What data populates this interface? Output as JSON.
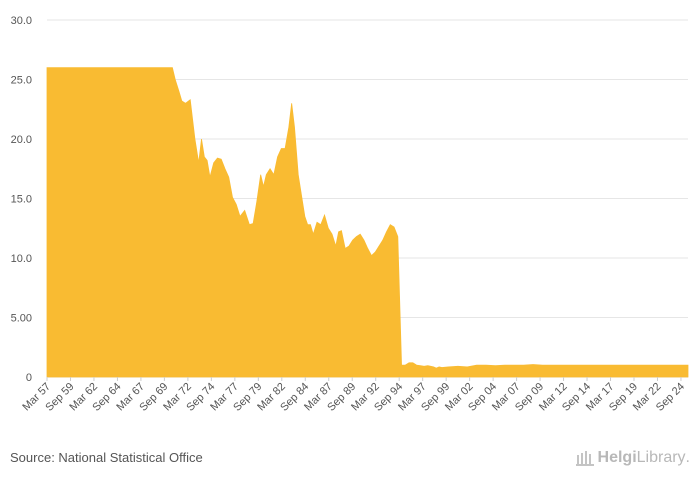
{
  "chart_data": {
    "type": "area",
    "title": "",
    "xlabel": "",
    "ylabel": "",
    "ylim": [
      0,
      30
    ],
    "y_ticks": [
      "0",
      "5.00",
      "10.0",
      "15.0",
      "20.0",
      "25.0",
      "30.0"
    ],
    "y_tick_values": [
      0,
      5,
      10,
      15,
      20,
      25,
      30
    ],
    "x_tick_labels": [
      "Mar 57",
      "Sep 59",
      "Mar 62",
      "Sep 64",
      "Mar 67",
      "Sep 69",
      "Mar 72",
      "Sep 74",
      "Mar 77",
      "Sep 79",
      "Mar 82",
      "Sep 84",
      "Mar 87",
      "Sep 89",
      "Mar 92",
      "Sep 94",
      "Mar 97",
      "Sep 99",
      "Mar 02",
      "Sep 04",
      "Mar 07",
      "Sep 09",
      "Mar 12",
      "Sep 14",
      "Mar 17",
      "Sep 19",
      "Mar 22",
      "Sep 24"
    ],
    "x_tick_values": [
      1957.25,
      1959.75,
      1962.25,
      1964.75,
      1967.25,
      1969.75,
      1972.25,
      1974.75,
      1977.25,
      1979.75,
      1982.25,
      1984.75,
      1987.25,
      1989.75,
      1992.25,
      1994.75,
      1997.25,
      1999.75,
      2002.25,
      2004.75,
      2007.25,
      2009.75,
      2012.25,
      2014.75,
      2017.25,
      2019.75,
      2022.25,
      2024.75
    ],
    "x_range": [
      1957.25,
      2025.5
    ],
    "grid": true,
    "fill_color": "#F9BB32",
    "series": [
      {
        "name": "value",
        "x": [
          1957.25,
          1970.6,
          1970.9,
          1971.3,
          1971.6,
          1972.0,
          1972.5,
          1973.0,
          1973.4,
          1973.7,
          1974.0,
          1974.3,
          1974.6,
          1975.0,
          1975.4,
          1975.8,
          1976.2,
          1976.6,
          1977.0,
          1977.4,
          1977.8,
          1978.3,
          1978.8,
          1979.2,
          1979.6,
          1980.0,
          1980.3,
          1980.6,
          1981.0,
          1981.4,
          1981.8,
          1982.2,
          1982.6,
          1983.0,
          1983.3,
          1983.6,
          1984.0,
          1984.4,
          1984.7,
          1985.0,
          1985.3,
          1985.6,
          1986.0,
          1986.4,
          1986.8,
          1987.2,
          1987.6,
          1988.0,
          1988.3,
          1988.6,
          1989.0,
          1989.4,
          1989.8,
          1990.2,
          1990.6,
          1991.0,
          1991.4,
          1991.8,
          1992.2,
          1992.6,
          1993.0,
          1993.4,
          1993.8,
          1994.2,
          1994.6,
          1995.0,
          1995.4,
          1995.8,
          1996.2,
          1996.6,
          1997.0,
          1997.4,
          1997.8,
          1998.1,
          1998.4,
          1998.7,
          1999.0,
          1999.3,
          2000.0,
          2001.0,
          2002.0,
          2003.0,
          2004.0,
          2005.0,
          2006.0,
          2007.0,
          2008.0,
          2009.0,
          2010.0,
          2011.0,
          2012.0,
          2013.0,
          2014.0,
          2015.0,
          2016.0,
          2017.0,
          2018.0,
          2019.0,
          2020.0,
          2021.0,
          2022.0,
          2023.0,
          2024.0,
          2025.5
        ],
        "y": [
          26.0,
          26.0,
          25.0,
          24.0,
          23.2,
          23.0,
          23.3,
          20.0,
          18.0,
          20.0,
          18.5,
          18.2,
          16.8,
          18.0,
          18.4,
          18.3,
          17.5,
          16.8,
          15.1,
          14.5,
          13.5,
          14.0,
          12.8,
          12.9,
          14.8,
          17.0,
          16.0,
          17.0,
          17.5,
          17.0,
          18.5,
          19.2,
          19.2,
          21.0,
          23.0,
          21.0,
          17.0,
          15.0,
          13.5,
          12.8,
          12.8,
          12.0,
          13.0,
          12.8,
          13.6,
          12.5,
          12.0,
          11.0,
          12.2,
          12.3,
          10.8,
          11.0,
          11.5,
          11.8,
          12.0,
          11.5,
          10.8,
          10.2,
          10.5,
          11.0,
          11.5,
          12.2,
          12.8,
          12.6,
          11.8,
          1.0,
          1.0,
          1.2,
          1.2,
          1.0,
          0.95,
          0.9,
          0.95,
          0.9,
          0.85,
          0.75,
          0.85,
          0.8,
          0.85,
          0.9,
          0.85,
          1.0,
          1.0,
          0.95,
          1.0,
          1.0,
          1.0,
          1.05,
          1.0,
          1.0,
          1.0,
          1.0,
          1.0,
          1.0,
          1.0,
          1.0,
          1.0,
          1.0,
          1.0,
          1.0,
          1.0,
          1.0,
          1.0,
          1.0
        ]
      }
    ]
  },
  "footer": {
    "source": "Source: National Statistical Office",
    "brand_prefix": "Helgi",
    "brand_suffix": "Library",
    "brand_dot": "."
  }
}
